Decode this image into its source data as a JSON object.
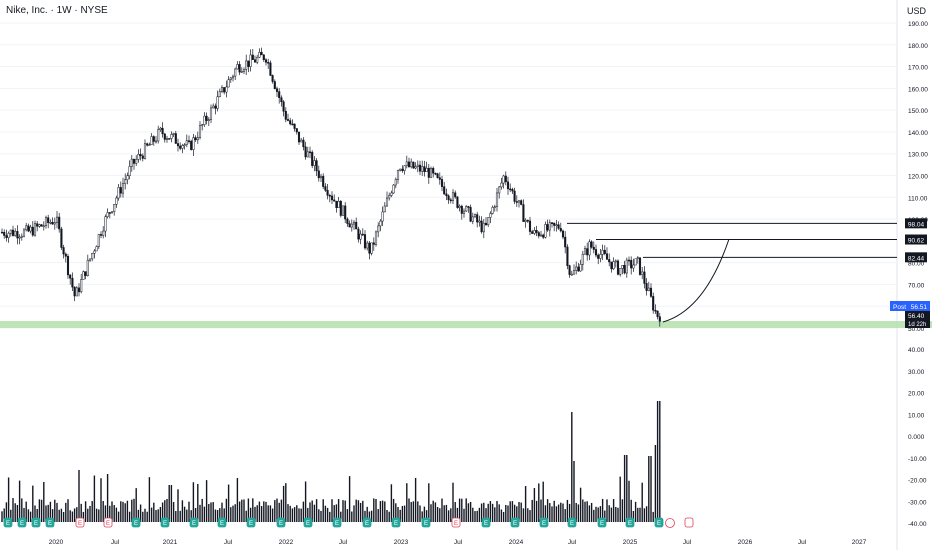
{
  "header": {
    "title": "Nike, Inc. · 1W · NYSE",
    "currency": "USD"
  },
  "price_axis": {
    "ticks": [
      "190.00",
      "180.00",
      "170.00",
      "160.00",
      "150.00",
      "140.00",
      "130.00",
      "120.00",
      "110.00",
      "100.00",
      "80.00",
      "70.00",
      "60.00",
      "50.00"
    ],
    "tick_values": [
      190,
      180,
      170,
      160,
      150,
      140,
      130,
      120,
      110,
      100,
      80,
      70,
      60,
      50
    ]
  },
  "volume_axis": {
    "ticks": [
      "40.00",
      "30.00",
      "20.00",
      "10.00",
      "0.000",
      "-10.00",
      "-20.00",
      "-30.00",
      "-40.00"
    ],
    "tick_values": [
      40,
      30,
      20,
      10,
      0,
      -10,
      -20,
      -30,
      -40
    ]
  },
  "time_axis": {
    "labels": [
      "2020",
      "Jul",
      "2021",
      "Jul",
      "2022",
      "Jul",
      "2023",
      "Jul",
      "2024",
      "Jul",
      "2025",
      "Jul",
      "2026",
      "Jul",
      "2027"
    ]
  },
  "levels": [
    {
      "label": "98.04",
      "value": 98.04
    },
    {
      "label": "90.62",
      "value": 90.62
    },
    {
      "label": "82.44",
      "value": 82.44
    }
  ],
  "post_badge": {
    "label": "Post",
    "value": "56.51",
    "color": "#2962ff"
  },
  "current_price": {
    "value": "56.40",
    "countdown": "1d 22h"
  },
  "support_zone": {
    "low": 50,
    "high": 53,
    "color": "#b7e1b0"
  },
  "colors": {
    "candle_up": "#131722",
    "candle_down": "#131722",
    "volume": "#131722"
  },
  "chart_data": {
    "type": "candlestick",
    "interval": "1W",
    "close_approx": [
      {
        "date": "2019-10",
        "close": 94
      },
      {
        "date": "2020-01",
        "close": 100
      },
      {
        "date": "2020-03",
        "close": 64
      },
      {
        "date": "2020-06",
        "close": 98
      },
      {
        "date": "2020-09",
        "close": 125
      },
      {
        "date": "2020-12",
        "close": 140
      },
      {
        "date": "2021-03",
        "close": 133
      },
      {
        "date": "2021-06",
        "close": 155
      },
      {
        "date": "2021-08",
        "close": 170
      },
      {
        "date": "2021-11",
        "close": 175
      },
      {
        "date": "2022-01",
        "close": 148
      },
      {
        "date": "2022-06",
        "close": 110
      },
      {
        "date": "2022-10",
        "close": 85
      },
      {
        "date": "2023-01",
        "close": 125
      },
      {
        "date": "2023-04",
        "close": 122
      },
      {
        "date": "2023-07",
        "close": 108
      },
      {
        "date": "2023-10",
        "close": 95
      },
      {
        "date": "2023-12",
        "close": 120
      },
      {
        "date": "2024-03",
        "close": 93
      },
      {
        "date": "2024-06",
        "close": 97
      },
      {
        "date": "2024-07",
        "close": 73
      },
      {
        "date": "2024-09",
        "close": 88
      },
      {
        "date": "2024-12",
        "close": 77
      },
      {
        "date": "2025-02",
        "close": 80
      },
      {
        "date": "2025-04",
        "close": 56
      }
    ],
    "ylim": [
      40,
      195
    ]
  }
}
